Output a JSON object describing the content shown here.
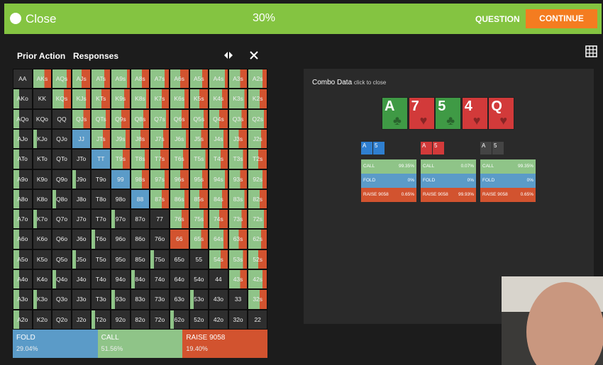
{
  "header": {
    "close": "Close",
    "progress": "30%",
    "question": "QUESTION",
    "continue": "CONTINUE"
  },
  "tabs": [
    "Prior Action",
    "Responses"
  ],
  "matrix": {
    "rows": [
      [
        "AA",
        "AKs",
        "AQs",
        "AJs",
        "ATs",
        "A9s",
        "A8s",
        "A7s",
        "A6s",
        "A5s",
        "A4s",
        "A3s",
        "A2s"
      ],
      [
        "AKo",
        "KK",
        "KQs",
        "KJs",
        "KTs",
        "K9s",
        "K8s",
        "K7s",
        "K6s",
        "K5s",
        "K4s",
        "K3s",
        "K2s"
      ],
      [
        "AQo",
        "KQo",
        "QQ",
        "QJs",
        "QTs",
        "Q9s",
        "Q8s",
        "Q7s",
        "Q6s",
        "Q5s",
        "Q4s",
        "Q3s",
        "Q2s"
      ],
      [
        "AJo",
        "KJo",
        "QJo",
        "JJ",
        "JTs",
        "J9s",
        "J8s",
        "J7s",
        "J6s",
        "J5s",
        "J4s",
        "J3s",
        "J2s"
      ],
      [
        "ATo",
        "KTo",
        "QTo",
        "JTo",
        "TT",
        "T9s",
        "T8s",
        "T7s",
        "T6s",
        "T5s",
        "T4s",
        "T3s",
        "T2s"
      ],
      [
        "A9o",
        "K9o",
        "Q9o",
        "J9o",
        "T9o",
        "99",
        "98s",
        "97s",
        "96s",
        "95s",
        "94s",
        "93s",
        "92s"
      ],
      [
        "A8o",
        "K8o",
        "Q8o",
        "J8o",
        "T8o",
        "98o",
        "88",
        "87s",
        "86s",
        "85s",
        "84s",
        "83s",
        "82s"
      ],
      [
        "A7o",
        "K7o",
        "Q7o",
        "J7o",
        "T7o",
        "97o",
        "87o",
        "77",
        "76s",
        "75s",
        "74s",
        "73s",
        "72s"
      ],
      [
        "A6o",
        "K6o",
        "Q6o",
        "J6o",
        "T6o",
        "96o",
        "86o",
        "76o",
        "66",
        "65s",
        "64s",
        "63s",
        "62s"
      ],
      [
        "A5o",
        "K5o",
        "Q5o",
        "J5o",
        "T5o",
        "95o",
        "85o",
        "75o",
        "65o",
        "55",
        "54s",
        "53s",
        "52s"
      ],
      [
        "A4o",
        "K4o",
        "Q4o",
        "J4o",
        "T4o",
        "94o",
        "84o",
        "74o",
        "64o",
        "54o",
        "44",
        "43s",
        "42s"
      ],
      [
        "A3o",
        "K3o",
        "Q3o",
        "J3o",
        "T3o",
        "93o",
        "83o",
        "73o",
        "63o",
        "53o",
        "43o",
        "33",
        "32s"
      ],
      [
        "A2o",
        "K2o",
        "Q2o",
        "J2o",
        "T2o",
        "92o",
        "82o",
        "72o",
        "62o",
        "52o",
        "42o",
        "32o",
        "22"
      ]
    ]
  },
  "summary": [
    {
      "action": "FOLD",
      "pct": "29.04%",
      "color": "#5b9bc8"
    },
    {
      "action": "CALL",
      "pct": "51.56%",
      "color": "#8fc488"
    },
    {
      "action": "RAISE 9058",
      "pct": "19.40%",
      "color": "#d2532f"
    }
  ],
  "combo_panel": {
    "title": "Combo Data",
    "hint": "click to close",
    "board": [
      {
        "rank": "A",
        "suit": "♣",
        "color": "#3f9a45"
      },
      {
        "rank": "7",
        "suit": "♥",
        "color": "#d23a3a"
      },
      {
        "rank": "5",
        "suit": "♣",
        "color": "#3f9a45"
      },
      {
        "rank": "4",
        "suit": "♥",
        "color": "#d23a3a"
      },
      {
        "rank": "Q",
        "suit": "♥",
        "color": "#d23a3a"
      }
    ],
    "combos": [
      {
        "cards": [
          {
            "rank": "A",
            "color": "#2f7fd0"
          },
          {
            "rank": "5",
            "color": "#2f7fd0"
          }
        ],
        "rows": [
          {
            "action": "CALL",
            "pct": "99.35%"
          },
          {
            "action": "FOLD",
            "pct": "0%"
          },
          {
            "action": "RAISE 9058",
            "pct": "0.65%"
          }
        ]
      },
      {
        "cards": [
          {
            "rank": "A",
            "color": "#d23a3a"
          },
          {
            "rank": "5",
            "color": "#d23a3a"
          }
        ],
        "rows": [
          {
            "action": "CALL",
            "pct": "0.07%"
          },
          {
            "action": "FOLD",
            "pct": "0%"
          },
          {
            "action": "RAISE 9058",
            "pct": "99.93%"
          }
        ]
      },
      {
        "cards": [
          {
            "rank": "A",
            "color": "#444444"
          },
          {
            "rank": "5",
            "color": "#444444"
          }
        ],
        "rows": [
          {
            "action": "CALL",
            "pct": "99.35%"
          },
          {
            "action": "FOLD",
            "pct": "0%"
          },
          {
            "action": "RAISE 9058",
            "pct": "0.65%"
          }
        ]
      }
    ]
  }
}
